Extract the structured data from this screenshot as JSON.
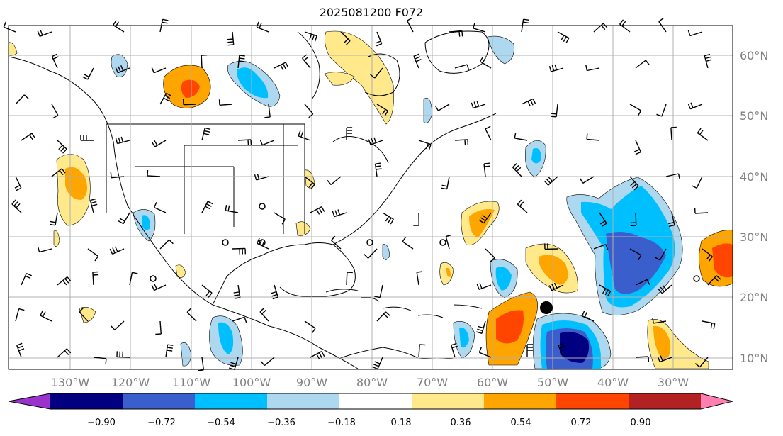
{
  "title": "2025081200 F072",
  "lon_labels": [
    "130°W",
    "120°W",
    "110°W",
    "100°W",
    "90°W",
    "80°W",
    "70°W",
    "60°W",
    "50°W",
    "40°W",
    "30°W"
  ],
  "lat_labels": [
    "60°N",
    "50°N",
    "40°N",
    "30°N",
    "20°N",
    "10°N"
  ],
  "colorbar": {
    "colors": [
      "#9933cc",
      "#000080",
      "#3a5fcd",
      "#00bfff",
      "#add8f0",
      "#ffffff",
      "#ffe98a",
      "#ffa500",
      "#ff4500",
      "#b22222",
      "#ff80b0"
    ],
    "labels": [
      "−0.90",
      "−0.72",
      "−0.54",
      "−0.36",
      "−0.18",
      "0.18",
      "0.36",
      "0.54",
      "0.72",
      "0.90"
    ]
  }
}
